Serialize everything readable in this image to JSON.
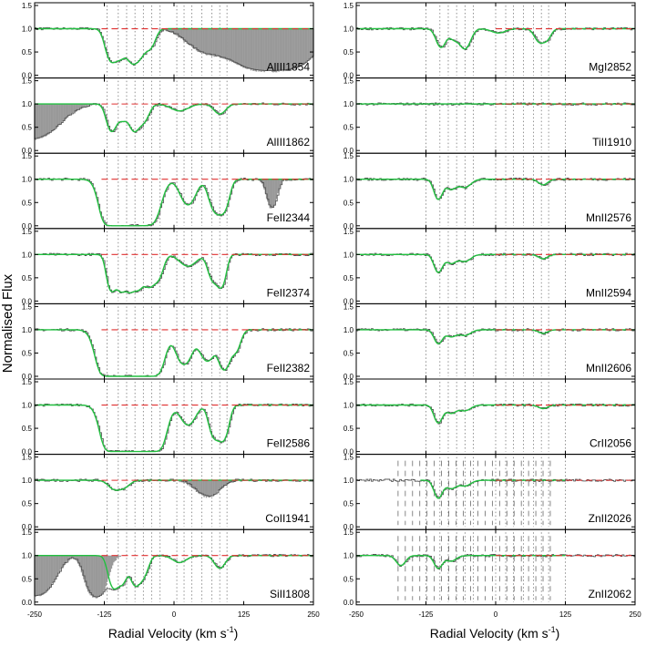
{
  "figure": {
    "ylabel": "Normalised Flux",
    "xlabel_left": "Radial Velocity (km s",
    "xlabel_right": "Radial Velocity (km s",
    "xlabel_sup": "-1",
    "xlabel_close": ")"
  },
  "chart_data": {
    "type": "line",
    "xlim": [
      -250,
      250
    ],
    "ylim": [
      0.0,
      1.5
    ],
    "xticks": [
      "-250",
      "-125",
      "0",
      "125",
      "250"
    ],
    "yticks": [
      "0.0",
      "0.5",
      "1.0",
      "1.5"
    ],
    "continuum": 1.0,
    "components_left": [
      -120,
      -100,
      -85,
      -70,
      -55,
      -40,
      -25,
      5,
      18,
      32,
      50,
      68,
      82,
      95
    ],
    "components_right": [
      -125,
      -100,
      -85,
      -70,
      -55,
      -40,
      0,
      18,
      32,
      50,
      68,
      82,
      95,
      125
    ],
    "colors": {
      "data": "#555555",
      "model": "#22c040",
      "continuum": "#e03030",
      "blend": "#999999"
    },
    "panels": [
      {
        "col": 0,
        "row": 0,
        "label": "AlIII1854",
        "lines": [
          {
            "v": -112,
            "d": 0.75,
            "w": 9
          },
          {
            "v": -95,
            "d": 0.5,
            "w": 8
          },
          {
            "v": -75,
            "d": 0.75,
            "w": 9
          },
          {
            "v": -60,
            "d": 0.45,
            "w": 9
          },
          {
            "v": -42,
            "d": 0.3,
            "w": 8
          }
        ],
        "blend": [
          {
            "v": 160,
            "d": 0.95,
            "w": 45
          },
          {
            "v": 55,
            "d": 0.25,
            "w": 30
          },
          {
            "v": 220,
            "d": 0.35,
            "w": 30
          }
        ],
        "blend_range": [
          20,
          250
        ]
      },
      {
        "col": 0,
        "row": 1,
        "label": "AlIII1862",
        "lines": [
          {
            "v": -112,
            "d": 0.55,
            "w": 8
          },
          {
            "v": -92,
            "d": 0.25,
            "w": 8
          },
          {
            "v": -72,
            "d": 0.5,
            "w": 8
          },
          {
            "v": -55,
            "d": 0.3,
            "w": 9
          },
          {
            "v": 10,
            "d": 0.1,
            "w": 15
          },
          {
            "v": 82,
            "d": 0.15,
            "w": 10
          }
        ],
        "blend": [
          {
            "v": -260,
            "d": 0.6,
            "w": 40
          }
        ],
        "blend_range": [
          -250,
          -210
        ]
      },
      {
        "col": 0,
        "row": 2,
        "label": "FeII2344",
        "lines": [
          {
            "v": -100,
            "d": 6,
            "w": 16
          },
          {
            "v": -60,
            "d": 4,
            "w": 18
          },
          {
            "v": 25,
            "d": 0.5,
            "w": 12
          },
          {
            "v": 75,
            "d": 0.75,
            "w": 10
          },
          {
            "v": 90,
            "d": 0.55,
            "w": 8
          }
        ],
        "blend": [
          {
            "v": 175,
            "d": 0.4,
            "w": 8
          }
        ],
        "blend_range": [
          160,
          190
        ]
      },
      {
        "col": 0,
        "row": 3,
        "label": "FeII2374",
        "lines": [
          {
            "v": -112,
            "d": 0.95,
            "w": 7
          },
          {
            "v": -95,
            "d": 0.9,
            "w": 7
          },
          {
            "v": -80,
            "d": 0.85,
            "w": 7
          },
          {
            "v": -65,
            "d": 0.8,
            "w": 8
          },
          {
            "v": -45,
            "d": 0.7,
            "w": 9
          },
          {
            "v": -28,
            "d": 0.4,
            "w": 8
          },
          {
            "v": 25,
            "d": 0.18,
            "w": 14
          },
          {
            "v": 70,
            "d": 0.5,
            "w": 8
          },
          {
            "v": 85,
            "d": 0.7,
            "w": 7
          }
        ],
        "blend": [],
        "blend_range": [
          0,
          0
        ]
      },
      {
        "col": 0,
        "row": 4,
        "label": "FeII2382",
        "lines": [
          {
            "v": -100,
            "d": 8,
            "w": 18
          },
          {
            "v": -55,
            "d": 6,
            "w": 18
          },
          {
            "v": 18,
            "d": 0.85,
            "w": 12
          },
          {
            "v": 60,
            "d": 0.7,
            "w": 12
          },
          {
            "v": 90,
            "d": 1.2,
            "w": 8
          },
          {
            "v": 110,
            "d": 0.4,
            "w": 8
          }
        ],
        "blend": [],
        "blend_range": [
          0,
          0
        ]
      },
      {
        "col": 0,
        "row": 5,
        "label": "FeII2586",
        "lines": [
          {
            "v": -95,
            "d": 7,
            "w": 17
          },
          {
            "v": -50,
            "d": 6,
            "w": 17
          },
          {
            "v": 25,
            "d": 0.35,
            "w": 12
          },
          {
            "v": 72,
            "d": 0.7,
            "w": 8
          },
          {
            "v": 88,
            "d": 0.85,
            "w": 8
          }
        ],
        "blend": [],
        "blend_range": [
          0,
          0
        ]
      },
      {
        "col": 0,
        "row": 6,
        "label": "CoII1941",
        "lines": [
          {
            "v": -108,
            "d": 0.12,
            "w": 10
          },
          {
            "v": -90,
            "d": 0.1,
            "w": 10
          }
        ],
        "blend": [
          {
            "v": 60,
            "d": 0.18,
            "w": 20
          }
        ],
        "blend_range": [
          0,
          0
        ]
      },
      {
        "col": 0,
        "row": 7,
        "label": "SiII1808",
        "lines": [
          {
            "v": -108,
            "d": 0.75,
            "w": 8
          },
          {
            "v": -92,
            "d": 0.5,
            "w": 7
          },
          {
            "v": -70,
            "d": 0.6,
            "w": 8
          },
          {
            "v": -55,
            "d": 0.35,
            "w": 8
          },
          {
            "v": 10,
            "d": 0.1,
            "w": 12
          },
          {
            "v": 82,
            "d": 0.2,
            "w": 9
          }
        ],
        "blend": [
          {
            "v": -250,
            "d": 0.85,
            "w": 25
          },
          {
            "v": -140,
            "d": 0.95,
            "w": 14
          }
        ],
        "blend_range": [
          -250,
          -130
        ]
      },
      {
        "col": 1,
        "row": 0,
        "label": "MgI2852",
        "lines": [
          {
            "v": -98,
            "d": 0.32,
            "w": 8
          },
          {
            "v": -75,
            "d": 0.15,
            "w": 8
          },
          {
            "v": -55,
            "d": 0.35,
            "w": 9
          },
          {
            "v": 5,
            "d": 0.06,
            "w": 12
          },
          {
            "v": 78,
            "d": 0.2,
            "w": 8
          },
          {
            "v": 92,
            "d": 0.15,
            "w": 7
          }
        ],
        "blend": [],
        "blend_range": [
          0,
          0
        ]
      },
      {
        "col": 1,
        "row": 1,
        "label": "TiII1910",
        "lines": [],
        "blend": [],
        "blend_range": [
          0,
          0
        ]
      },
      {
        "col": 1,
        "row": 2,
        "label": "MnII2576",
        "lines": [
          {
            "v": -103,
            "d": 0.35,
            "w": 7
          },
          {
            "v": -80,
            "d": 0.15,
            "w": 9
          },
          {
            "v": -55,
            "d": 0.12,
            "w": 10
          },
          {
            "v": 85,
            "d": 0.08,
            "w": 8
          }
        ],
        "blend": [],
        "blend_range": [
          0,
          0
        ]
      },
      {
        "col": 1,
        "row": 3,
        "label": "MnII2594",
        "lines": [
          {
            "v": -103,
            "d": 0.3,
            "w": 7
          },
          {
            "v": -80,
            "d": 0.13,
            "w": 9
          },
          {
            "v": -55,
            "d": 0.1,
            "w": 10
          },
          {
            "v": 85,
            "d": 0.06,
            "w": 8
          }
        ],
        "blend": [],
        "blend_range": [
          0,
          0
        ]
      },
      {
        "col": 1,
        "row": 4,
        "label": "MnII2606",
        "lines": [
          {
            "v": -103,
            "d": 0.22,
            "w": 7
          },
          {
            "v": -80,
            "d": 0.1,
            "w": 9
          },
          {
            "v": -55,
            "d": 0.08,
            "w": 10
          },
          {
            "v": 85,
            "d": 0.05,
            "w": 8
          }
        ],
        "blend": [],
        "blend_range": [
          0,
          0
        ]
      },
      {
        "col": 1,
        "row": 5,
        "label": "CrII2056",
        "lines": [
          {
            "v": -103,
            "d": 0.3,
            "w": 7
          },
          {
            "v": -80,
            "d": 0.12,
            "w": 9
          },
          {
            "v": -55,
            "d": 0.08,
            "w": 10
          },
          {
            "v": 85,
            "d": 0.05,
            "w": 8
          }
        ],
        "blend": [],
        "blend_range": [
          0,
          0
        ]
      },
      {
        "col": 1,
        "row": 6,
        "label": "ZnII2026",
        "lines": [
          {
            "v": -103,
            "d": 0.3,
            "w": 7
          },
          {
            "v": -80,
            "d": 0.12,
            "w": 9
          },
          {
            "v": -55,
            "d": 0.08,
            "w": 10
          }
        ],
        "blend": [],
        "blend_range": [
          0,
          0
        ]
      },
      {
        "col": 1,
        "row": 7,
        "label": "ZnII2062",
        "lines": [
          {
            "v": -170,
            "d": 0.15,
            "w": 8
          },
          {
            "v": -103,
            "d": 0.2,
            "w": 7
          },
          {
            "v": -80,
            "d": 0.08,
            "w": 9
          }
        ],
        "blend": [],
        "blend_range": [
          0,
          0
        ]
      }
    ]
  }
}
